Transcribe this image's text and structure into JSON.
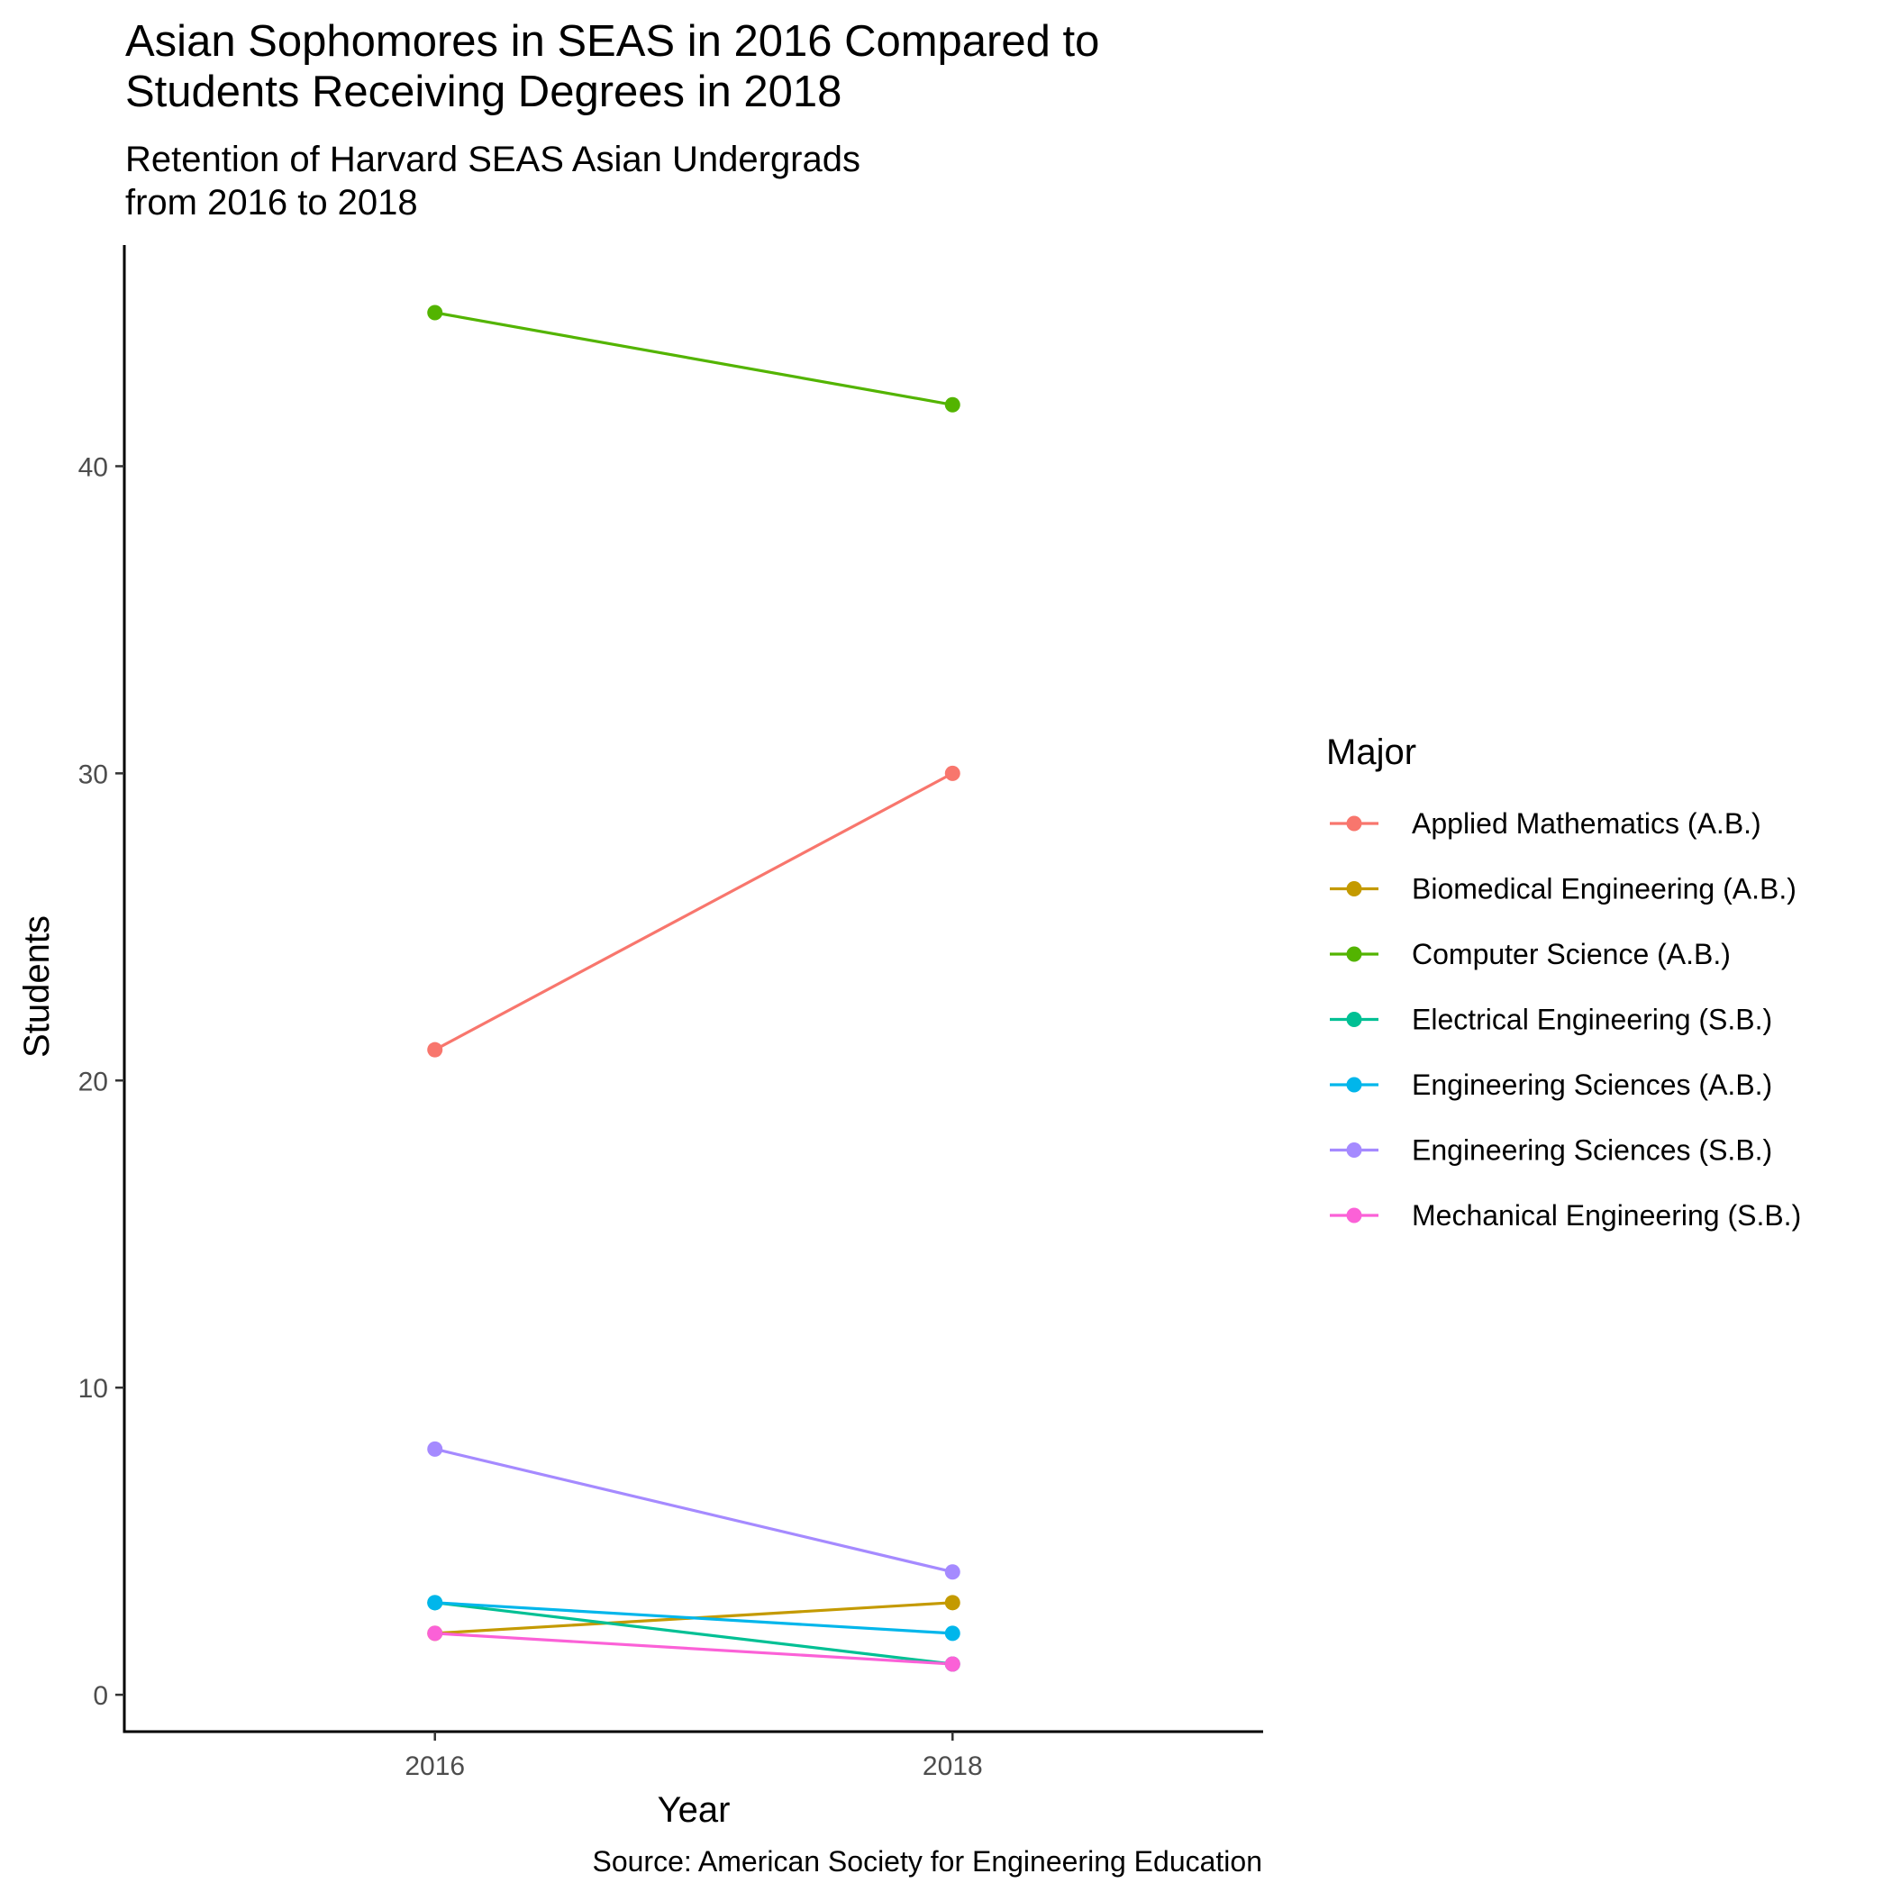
{
  "chart_data": {
    "type": "line",
    "title": "Asian Sophomores in SEAS in 2016 Compared to",
    "title_line2": "Students Receiving Degrees in 2018",
    "subtitle": "Retention of Harvard SEAS Asian Undergrads",
    "subtitle_line2": "from 2016 to 2018",
    "xlabel": "Year",
    "ylabel": "Students",
    "caption": "Source: American Society for Engineering Education",
    "x": [
      2016,
      2018
    ],
    "x_ticks": [
      "2016",
      "2018"
    ],
    "y_ticks": [
      "0",
      "10",
      "20",
      "30",
      "40"
    ],
    "ylim": [
      -1.2,
      47.2
    ],
    "xlim": [
      2014.8,
      2019.2
    ],
    "grid": false,
    "legend": {
      "title": "Major",
      "position": "right"
    },
    "series": [
      {
        "name": "Applied Mathematics (A.B.)",
        "color": "#F8766D",
        "values": [
          21,
          30
        ]
      },
      {
        "name": "Biomedical Engineering (A.B.)",
        "color": "#C49A00",
        "values": [
          2,
          3
        ]
      },
      {
        "name": "Computer Science (A.B.)",
        "color": "#53B400",
        "values": [
          45,
          42
        ]
      },
      {
        "name": "Electrical Engineering (S.B.)",
        "color": "#00C094",
        "values": [
          3,
          1
        ]
      },
      {
        "name": "Engineering Sciences (A.B.)",
        "color": "#00B6EB",
        "values": [
          3,
          2
        ]
      },
      {
        "name": "Engineering Sciences (S.B.)",
        "color": "#A58AFF",
        "values": [
          8,
          4
        ]
      },
      {
        "name": "Mechanical Engineering (S.B.)",
        "color": "#FB61D7",
        "values": [
          2,
          1
        ]
      }
    ]
  }
}
